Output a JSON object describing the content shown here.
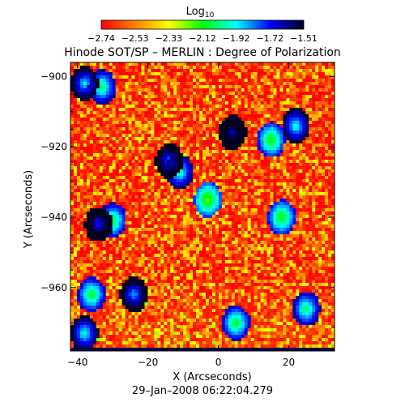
{
  "chart_data": {
    "type": "heatmap",
    "title": "Hinode SOT/SP – MERLIN : Degree of Polarization",
    "colorbar": {
      "title_base": "Log",
      "title_sub": "10",
      "ticks": [
        "−2.74",
        "−2.53",
        "−2.33",
        "−2.12",
        "−1.92",
        "−1.72",
        "−1.51"
      ],
      "range": [
        -2.74,
        -1.51
      ],
      "colors": [
        "#ff0000",
        "#ff8000",
        "#ffff00",
        "#00ff00",
        "#00ffff",
        "#0000ff",
        "#000020"
      ]
    },
    "xlabel": "X (Arcseconds)",
    "ylabel": "Y (Arcseconds)",
    "xlim": [
      -42,
      33
    ],
    "ylim": [
      -978,
      -896
    ],
    "xticks": [
      {
        "value": -40,
        "label": "−40"
      },
      {
        "value": -20,
        "label": "−20"
      },
      {
        "value": 0,
        "label": "0"
      },
      {
        "value": 20,
        "label": "20"
      }
    ],
    "yticks": [
      {
        "value": -900,
        "label": "−900"
      },
      {
        "value": -920,
        "label": "−920"
      },
      {
        "value": -940,
        "label": "−940"
      },
      {
        "value": -960,
        "label": "−960"
      }
    ],
    "dominant_value": -2.74,
    "features": [
      {
        "x": -38,
        "y": -902,
        "v": -1.95
      },
      {
        "x": -33,
        "y": -903,
        "v": -2.1
      },
      {
        "x": 4,
        "y": -916,
        "v": -1.72
      },
      {
        "x": 22,
        "y": -914,
        "v": -2.0
      },
      {
        "x": -14,
        "y": -924,
        "v": -1.85
      },
      {
        "x": -11,
        "y": -927,
        "v": -2.05
      },
      {
        "x": -34,
        "y": -942,
        "v": -1.78
      },
      {
        "x": -30,
        "y": -941,
        "v": -2.15
      },
      {
        "x": -24,
        "y": -962,
        "v": -1.9
      },
      {
        "x": -36,
        "y": -962,
        "v": -2.15
      },
      {
        "x": 15,
        "y": -918,
        "v": -2.2
      },
      {
        "x": 18,
        "y": -940,
        "v": -2.2
      },
      {
        "x": -38,
        "y": -973,
        "v": -2.0
      },
      {
        "x": 5,
        "y": -970,
        "v": -2.15
      },
      {
        "x": 25,
        "y": -966,
        "v": -2.1
      },
      {
        "x": -3,
        "y": -935,
        "v": -2.25
      }
    ],
    "bottom_edge": {
      "y": -977,
      "v": -1.55
    }
  },
  "date": "29–Jan–2008 06:22:04.279"
}
